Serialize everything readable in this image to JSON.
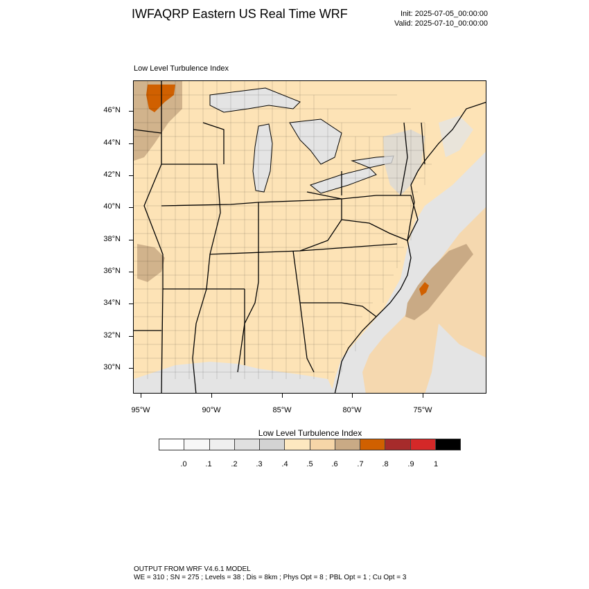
{
  "header": {
    "title": "IWFAQRP Eastern US Real Time WRF",
    "init": "Init: 2025-07-05_00:00:00",
    "valid": "Valid: 2025-07-10_00:00:00"
  },
  "map": {
    "subtitle": "Low Level Turbulence Index",
    "lat_labels": [
      "46°N",
      "44°N",
      "42°N",
      "40°N",
      "38°N",
      "36°N",
      "34°N",
      "32°N",
      "30°N"
    ],
    "lon_labels": [
      "95°W",
      "90°W",
      "85°W",
      "80°W",
      "75°W"
    ],
    "colors": {
      "land_base": "#fde3b6",
      "water_gray": "#e4e4e4",
      "light_gray": "#f2f2f2",
      "tan": "#c9aa85",
      "orange": "#d06000",
      "boundary": "#000000"
    }
  },
  "colorbar": {
    "title": "Low Level Turbulence Index",
    "colors": [
      "#ffffff",
      "#f7f7f7",
      "#efefef",
      "#e0e0e0",
      "#d3d3d3",
      "#fde8c0",
      "#f6d6a8",
      "#c9aa85",
      "#d06000",
      "#a62b2b",
      "#d42828",
      "#000000"
    ],
    "labels": [
      ".0",
      ".1",
      ".2",
      ".3",
      ".4",
      ".5",
      ".6",
      ".7",
      ".8",
      ".9",
      "1"
    ]
  },
  "footer": {
    "line1": "OUTPUT FROM WRF V4.6.1 MODEL",
    "line2": "WE = 310 ; SN = 275 ; Levels = 38 ; Dis = 8km ; Phys Opt = 8 ; PBL Opt = 1 ; Cu Opt = 3"
  }
}
